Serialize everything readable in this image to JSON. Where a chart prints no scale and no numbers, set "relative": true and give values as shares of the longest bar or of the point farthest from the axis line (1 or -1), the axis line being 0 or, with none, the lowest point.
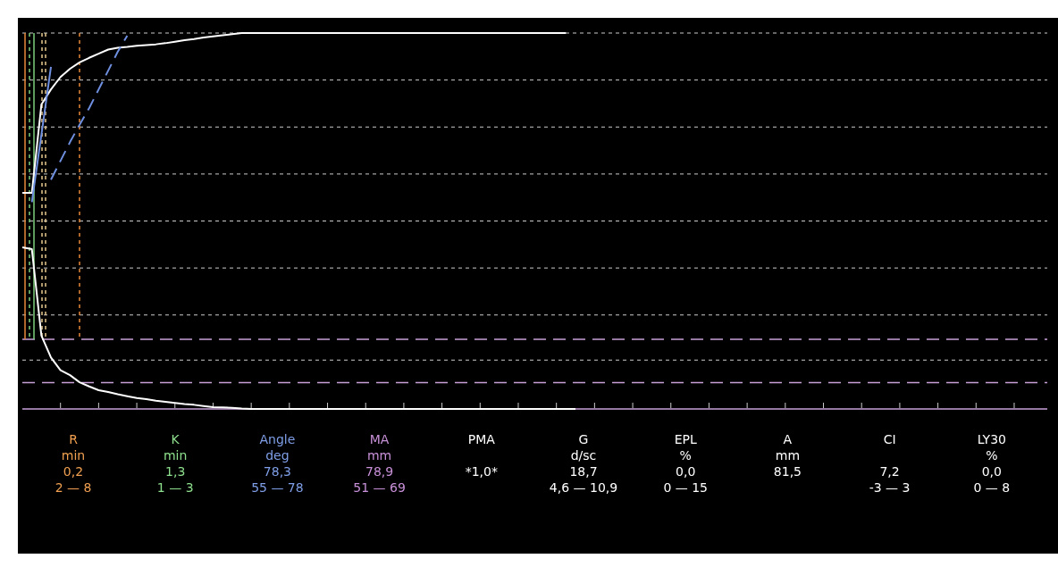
{
  "chart_data": {
    "type": "line",
    "relative": true,
    "categories": [
      null,
      null,
      null,
      null,
      null,
      null,
      null,
      null,
      null,
      null,
      null,
      null,
      null,
      null,
      null,
      null,
      null,
      null,
      null,
      null,
      null,
      null,
      null,
      null,
      null,
      null,
      null,
      null,
      null,
      null,
      null,
      null,
      null,
      null,
      null,
      null,
      null,
      null,
      null,
      null,
      null,
      null,
      null,
      null,
      null,
      null,
      null,
      null,
      null,
      null,
      null,
      null,
      null,
      null,
      null,
      null,
      null,
      null,
      null,
      null,
      null,
      null,
      null,
      null,
      null,
      null,
      null,
      null,
      null,
      null,
      null,
      null,
      null,
      null,
      null,
      null,
      null,
      null,
      null,
      null,
      null,
      null,
      null,
      null,
      null,
      null,
      null,
      null,
      null,
      null,
      null,
      null,
      null,
      null,
      null,
      null,
      null,
      null,
      null,
      null,
      null,
      null,
      null,
      null,
      null,
      null,
      null,
      null
    ],
    "series": [
      {
        "color": "#ffffff",
        "values": [
          0.575,
          0.575,
          0.81,
          0.85,
          0.883,
          0.905,
          0.922,
          0.934,
          0.945,
          0.956,
          0.961,
          0.963,
          0.966,
          0.968,
          0.97,
          0.973,
          0.977,
          0.981,
          0.984,
          0.988,
          0.991,
          0.994,
          0.997,
          1.0,
          1,
          1,
          1,
          1,
          1,
          1,
          1,
          1,
          1,
          1,
          1,
          1,
          1,
          1,
          1,
          1,
          1,
          1,
          1,
          1,
          1,
          1,
          1,
          1,
          1,
          1,
          1,
          1,
          1,
          1,
          1,
          1,
          1,
          1,
          null,
          null,
          null,
          null,
          null,
          null,
          null,
          null,
          null,
          null,
          null,
          null,
          null,
          null,
          null,
          null,
          null,
          null,
          null,
          null,
          null,
          null,
          null,
          null,
          null,
          null,
          null,
          null,
          null,
          null,
          null,
          null,
          null,
          null,
          null,
          null,
          null,
          null,
          null,
          null,
          null,
          null,
          null,
          null,
          null,
          null,
          null,
          null,
          null,
          null
        ]
      },
      {
        "color": "#ffffff",
        "values": [
          0.43,
          0.425,
          0.195,
          0.137,
          0.103,
          0.09,
          0.071,
          0.06,
          0.05,
          0.045,
          0.039,
          0.034,
          0.029,
          0.026,
          0.022,
          0.019,
          0.016,
          0.013,
          0.011,
          0.008,
          0.005,
          0.004,
          0.003,
          0.001,
          0,
          0,
          0,
          0,
          0,
          0,
          0,
          0,
          0,
          0,
          0,
          0,
          0,
          0,
          0,
          0,
          0,
          0,
          0,
          0,
          0,
          0,
          0,
          0,
          0,
          0,
          0,
          0,
          0,
          0,
          0,
          0,
          0,
          0,
          0,
          null,
          null,
          null,
          null,
          null,
          null,
          null,
          null,
          null,
          null,
          null,
          null,
          null,
          null,
          null,
          null,
          null,
          null,
          null,
          null,
          null,
          null,
          null,
          null,
          null,
          null,
          null,
          null,
          null,
          null,
          null,
          null,
          null,
          null,
          null,
          null,
          null,
          null,
          null,
          null,
          null,
          null,
          null,
          null,
          null,
          null,
          null,
          null,
          null
        ]
      },
      {
        "color": "#6f8fe0",
        "line_style": "solid",
        "values": [
          null,
          0.55,
          0.73,
          0.91,
          null,
          null,
          null,
          null,
          null,
          null,
          null,
          null,
          null,
          null,
          null,
          null,
          null,
          null,
          null,
          null,
          null,
          null,
          null,
          null,
          null,
          null,
          null,
          null,
          null,
          null,
          null,
          null,
          null,
          null,
          null,
          null,
          null,
          null,
          null,
          null,
          null,
          null,
          null,
          null,
          null,
          null,
          null,
          null,
          null,
          null,
          null,
          null,
          null,
          null,
          null,
          null,
          null,
          null,
          null,
          null,
          null,
          null,
          null,
          null,
          null,
          null,
          null,
          null,
          null,
          null,
          null,
          null,
          null,
          null,
          null,
          null,
          null,
          null,
          null,
          null,
          null,
          null,
          null,
          null,
          null,
          null,
          null,
          null,
          null,
          null,
          null,
          null,
          null,
          null,
          null,
          null,
          null,
          null,
          null,
          null,
          null,
          null,
          null,
          null,
          null,
          null,
          null,
          null
        ]
      },
      {
        "color": "#6f8fe0",
        "line_style": "dashed",
        "values": [
          null,
          null,
          null,
          0.61,
          0.66,
          0.71,
          0.756,
          0.8,
          0.85,
          0.9,
          0.95,
          0.993,
          null,
          null,
          null,
          null,
          null,
          null,
          null,
          null,
          null,
          null,
          null,
          null,
          null,
          null,
          null,
          null,
          null,
          null,
          null,
          null,
          null,
          null,
          null,
          null,
          null,
          null,
          null,
          null,
          null,
          null,
          null,
          null,
          null,
          null,
          null,
          null,
          null,
          null,
          null,
          null,
          null,
          null,
          null,
          null,
          null,
          null,
          null,
          null,
          null,
          null,
          null,
          null,
          null,
          null,
          null,
          null,
          null,
          null,
          null,
          null,
          null,
          null,
          null,
          null,
          null,
          null,
          null,
          null,
          null,
          null,
          null,
          null,
          null,
          null,
          null,
          null,
          null,
          null,
          null,
          null,
          null,
          null,
          null,
          null,
          null,
          null,
          null,
          null,
          null,
          null,
          null,
          null,
          null,
          null,
          null,
          null
        ]
      }
    ],
    "ref_lines": [
      {
        "axis": "y",
        "value": 1.0,
        "color": "#cccccc",
        "line_style": "dotted"
      },
      {
        "axis": "y",
        "value": 0.875,
        "color": "#cccccc",
        "line_style": "dotted"
      },
      {
        "axis": "y",
        "value": 0.75,
        "color": "#cccccc",
        "line_style": "dotted"
      },
      {
        "axis": "y",
        "value": 0.625,
        "color": "#cccccc",
        "line_style": "dotted"
      },
      {
        "axis": "y",
        "value": 0.5,
        "color": "#cccccc",
        "line_style": "dotted"
      },
      {
        "axis": "y",
        "value": 0.375,
        "color": "#cccccc",
        "line_style": "dotted"
      },
      {
        "axis": "y",
        "value": 0.25,
        "color": "#cccccc",
        "line_style": "dotted"
      },
      {
        "axis": "y",
        "value": 0.13,
        "color": "#cccccc",
        "line_style": "dotted"
      },
      {
        "axis": "y",
        "value": 0.185,
        "color": "#c8a0d8",
        "line_style": "dashed"
      },
      {
        "axis": "y",
        "value": 0.07,
        "color": "#c8a0d8",
        "line_style": "dashed"
      }
    ],
    "annotations": [
      "R\nmin\n0,2\n2 — 8",
      "K\nmin\n1,3\n1 — 3",
      "Angle\ndeg\n78,3\n55 — 78",
      "MA\nmm\n78,9\n51 — 69",
      "PMA\n\n*1,0*\n",
      "G\nd/sc\n18,7\n4,6 — 10,9",
      "EPL\n%\n0,0\n0 — 15",
      "A\nmm\n81,5\n",
      "CI\n\n7,2\n-3 — 3",
      "LY30\n%\n0,0\n0 — 8"
    ]
  }
}
